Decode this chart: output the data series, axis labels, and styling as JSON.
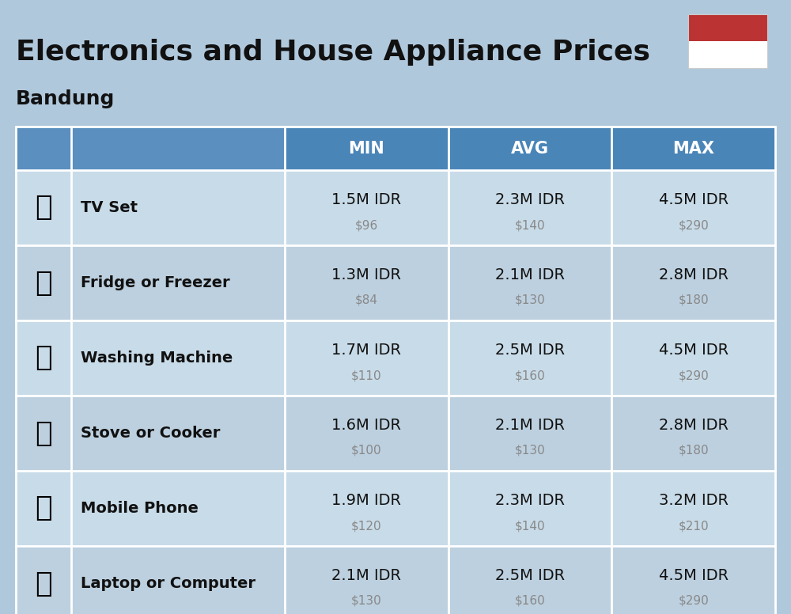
{
  "title": "Electronics and House Appliance Prices",
  "subtitle": "Bandung",
  "bg_color": "#b0c8dc",
  "header_col_color": "#4a85b8",
  "header_col_light": "#5a8fc0",
  "row_even_color": "#c8dbe8",
  "row_odd_color": "#bdd0df",
  "white": "#ffffff",
  "text_dark": "#111111",
  "text_gray": "#888888",
  "flag_red": "#bb3333",
  "columns": [
    "MIN",
    "AVG",
    "MAX"
  ],
  "rows": [
    {
      "name": "TV Set",
      "min_idr": "1.5M IDR",
      "min_usd": "$96",
      "avg_idr": "2.3M IDR",
      "avg_usd": "$140",
      "max_idr": "4.5M IDR",
      "max_usd": "$290"
    },
    {
      "name": "Fridge or Freezer",
      "min_idr": "1.3M IDR",
      "min_usd": "$84",
      "avg_idr": "2.1M IDR",
      "avg_usd": "$130",
      "max_idr": "2.8M IDR",
      "max_usd": "$180"
    },
    {
      "name": "Washing Machine",
      "min_idr": "1.7M IDR",
      "min_usd": "$110",
      "avg_idr": "2.5M IDR",
      "avg_usd": "$160",
      "max_idr": "4.5M IDR",
      "max_usd": "$290"
    },
    {
      "name": "Stove or Cooker",
      "min_idr": "1.6M IDR",
      "min_usd": "$100",
      "avg_idr": "2.1M IDR",
      "avg_usd": "$130",
      "max_idr": "2.8M IDR",
      "max_usd": "$180"
    },
    {
      "name": "Mobile Phone",
      "min_idr": "1.9M IDR",
      "min_usd": "$120",
      "avg_idr": "2.3M IDR",
      "avg_usd": "$140",
      "max_idr": "3.2M IDR",
      "max_usd": "$210"
    },
    {
      "name": "Laptop or Computer",
      "min_idr": "2.1M IDR",
      "min_usd": "$130",
      "avg_idr": "2.5M IDR",
      "avg_usd": "$160",
      "max_idr": "4.5M IDR",
      "max_usd": "$290"
    }
  ],
  "icon_images": [
    "📺",
    "🧈",
    "🥣",
    "🔥",
    "📱",
    "💻"
  ],
  "title_fontsize": 26,
  "subtitle_fontsize": 18,
  "header_fontsize": 15,
  "name_fontsize": 14,
  "price_idr_fontsize": 14,
  "price_usd_fontsize": 11,
  "icon_fontsize": 26,
  "fig_w": 10.0,
  "fig_h": 7.76,
  "dpi": 100
}
